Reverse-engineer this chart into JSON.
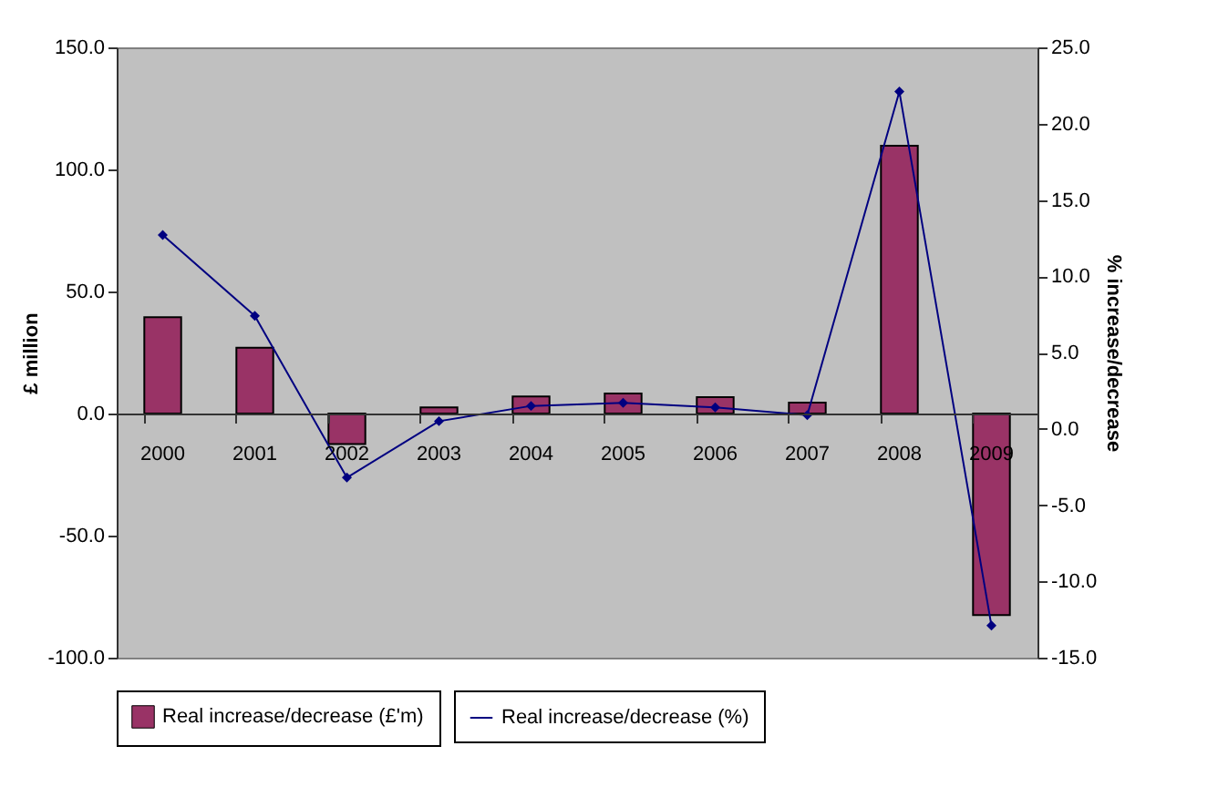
{
  "chart_data": {
    "type": "bar",
    "categories": [
      "2000",
      "2001",
      "2002",
      "2003",
      "2004",
      "2005",
      "2006",
      "2007",
      "2008",
      "2009"
    ],
    "ylabel": "£ million",
    "y2label": "% increase/decrease",
    "series": [
      {
        "name": "Real increase/decrease (£'m)",
        "color": "#993366",
        "values": [
          39.5,
          27,
          -12.5,
          2.5,
          7,
          8.2,
          6.7,
          4.5,
          109.7,
          -82.6
        ]
      },
      {
        "name": "Real increase/decrease (%)",
        "type": "line",
        "axis": "y2",
        "color": "#000080",
        "marker": "diamond",
        "values": [
          12.7,
          7.4,
          -3.2,
          0.5,
          1.5,
          1.7,
          1.4,
          0.9,
          22.1,
          -12.9
        ]
      }
    ],
    "ylim": [
      -100,
      150
    ],
    "yticks": [
      {
        "value": -100,
        "label": "-100.0"
      },
      {
        "value": -50,
        "label": "-50.0"
      },
      {
        "value": 0,
        "label": "0.0"
      },
      {
        "value": 50,
        "label": "50.0"
      },
      {
        "value": 100,
        "label": "100.0"
      },
      {
        "value": 150,
        "label": "150.0"
      }
    ],
    "y2lim": [
      -15,
      25
    ],
    "y2ticks": [
      {
        "value": -15,
        "label": "-15.0"
      },
      {
        "value": -10,
        "label": "-10.0"
      },
      {
        "value": -5,
        "label": "-5.0"
      },
      {
        "value": 0,
        "label": "0.0"
      },
      {
        "value": 5,
        "label": "5.0"
      },
      {
        "value": 10,
        "label": "10.0"
      },
      {
        "value": 15,
        "label": "15.0"
      },
      {
        "value": 20,
        "label": "20.0"
      },
      {
        "value": 25,
        "label": "25.0"
      }
    ],
    "legend": "bottom",
    "grid": false
  }
}
